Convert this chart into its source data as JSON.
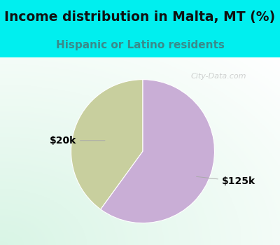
{
  "title": "Income distribution in Malta, MT (%)",
  "subtitle": "Hispanic or Latino residents",
  "slices": [
    {
      "label": "$20k",
      "value": 40,
      "color": "#c8cf9e"
    },
    {
      "label": "$125k",
      "value": 60,
      "color": "#c9aed6"
    }
  ],
  "title_fontsize": 13.5,
  "subtitle_fontsize": 11,
  "subtitle_color": "#3a8a8a",
  "title_bg_color": "#00efef",
  "label_fontsize": 10,
  "watermark": "City-Data.com",
  "watermark_color": "#aaaaaa",
  "startangle": 90,
  "bg_colors": [
    "#c8e8d8",
    "#e8f8f0",
    "#f5fff8",
    "#ffffff",
    "#f0f8ff",
    "#e0f0f8"
  ]
}
